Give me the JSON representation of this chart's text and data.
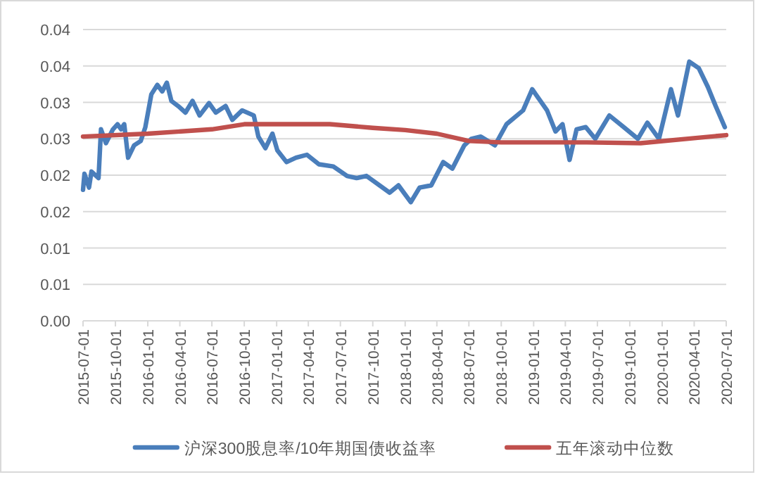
{
  "chart_data": {
    "type": "line",
    "x": [
      "2015-07-01",
      "2015-07-05",
      "2015-07-18",
      "2015-07-25",
      "2015-08-14",
      "2015-08-21",
      "2015-09-04",
      "2015-09-24",
      "2015-10-07",
      "2015-10-17",
      "2015-10-26",
      "2015-11-06",
      "2015-11-23",
      "2015-12-12",
      "2015-12-25",
      "2016-01-11",
      "2016-01-28",
      "2016-02-11",
      "2016-02-24",
      "2016-03-08",
      "2016-03-27",
      "2016-04-17",
      "2016-05-07",
      "2016-05-27",
      "2016-06-23",
      "2016-07-12",
      "2016-08-09",
      "2016-08-28",
      "2016-09-25",
      "2016-10-28",
      "2016-11-10",
      "2016-11-30",
      "2016-12-20",
      "2017-01-03",
      "2017-01-29",
      "2017-02-25",
      "2017-03-28",
      "2017-05-01",
      "2017-06-11",
      "2017-07-20",
      "2017-08-16",
      "2017-09-13",
      "2017-11-18",
      "2017-12-13",
      "2018-01-17",
      "2018-02-11",
      "2018-03-16",
      "2018-04-19",
      "2018-05-15",
      "2018-06-18",
      "2018-07-08",
      "2018-08-04",
      "2018-09-13",
      "2018-10-16",
      "2018-12-02",
      "2018-12-28",
      "2019-02-08",
      "2019-03-04",
      "2019-03-24",
      "2019-04-13",
      "2019-05-03",
      "2019-05-29",
      "2019-06-25",
      "2019-08-04",
      "2019-09-14",
      "2019-10-24",
      "2019-11-20",
      "2019-12-23",
      "2020-01-26",
      "2020-02-15",
      "2020-03-18",
      "2020-04-14",
      "2020-05-10",
      "2020-06-01",
      "2020-06-27"
    ],
    "series": [
      {
        "name": "沪深300股息率/10年期国债收益率",
        "color": "#4a7ebb",
        "values": [
          0.018,
          0.0202,
          0.0183,
          0.0205,
          0.0196,
          0.0263,
          0.0244,
          0.0263,
          0.027,
          0.0263,
          0.027,
          0.0224,
          0.0241,
          0.0247,
          0.0266,
          0.0311,
          0.0324,
          0.0315,
          0.0327,
          0.0302,
          0.0295,
          0.0286,
          0.0302,
          0.0282,
          0.0299,
          0.0286,
          0.0295,
          0.0276,
          0.0289,
          0.0282,
          0.0253,
          0.0237,
          0.0257,
          0.0234,
          0.0218,
          0.0224,
          0.0228,
          0.0215,
          0.0212,
          0.0199,
          0.0196,
          0.0199,
          0.0176,
          0.0186,
          0.0163,
          0.0183,
          0.0186,
          0.0218,
          0.0209,
          0.0241,
          0.025,
          0.0253,
          0.0241,
          0.027,
          0.0289,
          0.0318,
          0.0289,
          0.026,
          0.027,
          0.0221,
          0.0263,
          0.0266,
          0.025,
          0.0282,
          0.0266,
          0.025,
          0.0272,
          0.025,
          0.0318,
          0.0282,
          0.0356,
          0.0347,
          0.0321,
          0.0295,
          0.0266
        ]
      },
      {
        "name": "五年滚动中位数",
        "color": "#c0504d",
        "x": [
          "2015-07-01",
          "2016-01-01",
          "2016-07-01",
          "2016-10-01",
          "2017-06-01",
          "2017-10-01",
          "2018-01-01",
          "2018-04-01",
          "2018-07-01",
          "2018-10-01",
          "2019-06-01",
          "2019-11-01",
          "2020-07-01"
        ],
        "values": [
          0.0253,
          0.0257,
          0.0263,
          0.027,
          0.027,
          0.0265,
          0.0262,
          0.0257,
          0.0247,
          0.0245,
          0.0245,
          0.0244,
          0.0255
        ]
      }
    ],
    "xlim": [
      "2015-07-01",
      "2020-07-01"
    ],
    "xticks": [
      "2015-07-01",
      "2015-10-01",
      "2016-01-01",
      "2016-04-01",
      "2016-07-01",
      "2016-10-01",
      "2017-01-01",
      "2017-04-01",
      "2017-07-01",
      "2017-10-01",
      "2018-01-01",
      "2018-04-01",
      "2018-07-01",
      "2018-10-01",
      "2019-01-01",
      "2019-04-01",
      "2019-07-01",
      "2019-10-01",
      "2020-01-01",
      "2020-04-01",
      "2020-07-01"
    ],
    "ylim": [
      0,
      0.04
    ],
    "yticks": [
      {
        "value": 0,
        "label": "0.00"
      },
      {
        "value": 0.005,
        "label": "0.01"
      },
      {
        "value": 0.01,
        "label": "0.01"
      },
      {
        "value": 0.015,
        "label": "0.02"
      },
      {
        "value": 0.02,
        "label": "0.02"
      },
      {
        "value": 0.025,
        "label": "0.03"
      },
      {
        "value": 0.03,
        "label": "0.03"
      },
      {
        "value": 0.035,
        "label": "0.04"
      },
      {
        "value": 0.04,
        "label": "0.04"
      }
    ],
    "grid": "y",
    "legend": "bottom",
    "marker": "none",
    "line_style": "solid"
  }
}
